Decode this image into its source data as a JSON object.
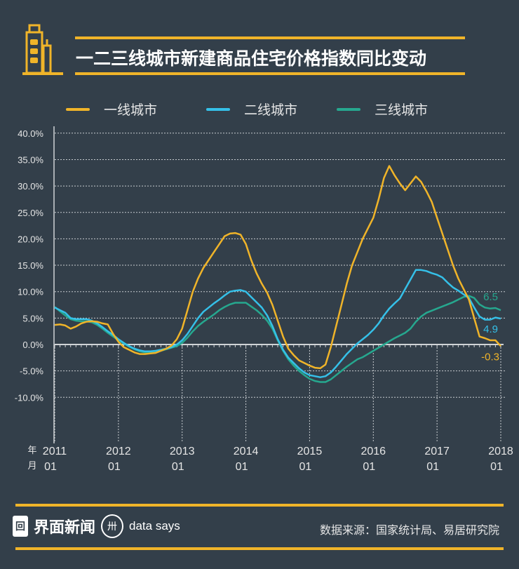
{
  "header": {
    "title": "一二三线城市新建商品住宅价格指数同比变动",
    "icon": "buildings-icon"
  },
  "footer": {
    "brand_name": "界面新闻",
    "brand_sub": "data says",
    "source": "数据来源：国家统计局、易居研究院",
    "brand_box_glyph": "回",
    "ds_glyph": "卅"
  },
  "chart_data": {
    "type": "line",
    "title": "一二三线城市新建商品住宅价格指数同比变动",
    "xlabel_year": "年",
    "xlabel_month": "月",
    "x_ticks": [
      {
        "year": "2011",
        "month": "01"
      },
      {
        "year": "2012",
        "month": "01"
      },
      {
        "year": "2013",
        "month": "01"
      },
      {
        "year": "2014",
        "month": "01"
      },
      {
        "year": "2015",
        "month": "01"
      },
      {
        "year": "2016",
        "month": "01"
      },
      {
        "year": "2017",
        "month": "01"
      },
      {
        "year": "2018",
        "month": "01"
      }
    ],
    "x_start": "2011-01",
    "x_end": "2018-01",
    "y_ticks": [
      "40.0%",
      "35.0%",
      "30.0%",
      "25.0%",
      "20.0%",
      "15.0%",
      "10.0%",
      "5.0%",
      "0.0%",
      "-5.0%",
      "-10.0%"
    ],
    "y_tick_values": [
      40,
      35,
      30,
      25,
      20,
      15,
      10,
      5,
      0,
      -5,
      -10
    ],
    "ylim": [
      -10,
      40
    ],
    "grid": true,
    "legend_position": "top",
    "series": [
      {
        "name": "一线城市",
        "color": "#f0b429",
        "end_label": "-0.3",
        "values": [
          3.7,
          3.8,
          3.6,
          3.0,
          3.4,
          4.0,
          4.3,
          4.4,
          4.3,
          4.0,
          3.8,
          2.0,
          0.5,
          -0.5,
          -1.0,
          -1.5,
          -1.8,
          -1.8,
          -1.7,
          -1.6,
          -1.2,
          -0.8,
          -0.2,
          1.0,
          3.0,
          6.5,
          10,
          12.5,
          14.5,
          16,
          17.5,
          19,
          20.5,
          21.0,
          21.1,
          20.8,
          19.0,
          16.0,
          13.5,
          11.5,
          9.8,
          7.5,
          4.5,
          1.5,
          -0.8,
          -2,
          -3,
          -3.5,
          -4,
          -4.4,
          -4.5,
          -3.8,
          -0.5,
          3.5,
          7.5,
          11.5,
          15,
          17.5,
          20,
          22,
          24,
          27.5,
          31.5,
          33.8,
          32,
          30.5,
          29.2,
          30.5,
          31.8,
          30.8,
          29,
          27,
          24,
          21,
          18,
          15,
          12.5,
          10.5,
          8.5,
          5,
          1.5,
          1.2,
          0.8,
          0.8,
          -0.3
        ]
      },
      {
        "name": "二线城市",
        "color": "#35c0e8",
        "end_label": "4.9",
        "values": [
          7.0,
          6.5,
          6.0,
          5.0,
          4.8,
          4.8,
          4.8,
          4.5,
          4.0,
          3.3,
          2.5,
          1.8,
          1.0,
          0.3,
          -0.3,
          -0.8,
          -1.1,
          -1.3,
          -1.3,
          -1.2,
          -1.0,
          -0.8,
          -0.5,
          0,
          0.8,
          2,
          3.5,
          5,
          6.2,
          7,
          7.8,
          8.5,
          9.3,
          10,
          10.2,
          10.3,
          10,
          9,
          8,
          7,
          5.5,
          3.5,
          1,
          -1,
          -2.5,
          -3.5,
          -4.5,
          -5.3,
          -5.8,
          -6.0,
          -6.2,
          -6.0,
          -5.3,
          -4.2,
          -3,
          -1.8,
          -0.8,
          0.2,
          1,
          1.8,
          2.8,
          4,
          5.5,
          6.8,
          7.8,
          8.7,
          10.5,
          12.3,
          14.1,
          14.1,
          13.9,
          13.5,
          13.2,
          12.7,
          11.7,
          10.8,
          10.2,
          9.5,
          8.8,
          7,
          5.3,
          4.7,
          4.7,
          5.1,
          4.9
        ]
      },
      {
        "name": "三线城市",
        "color": "#26a88f",
        "end_label": "6.5",
        "values": [
          7.1,
          6.3,
          5.5,
          4.8,
          4.5,
          4.4,
          4.4,
          4.2,
          3.7,
          3.0,
          2.2,
          1.5,
          0.8,
          0.2,
          -0.4,
          -0.9,
          -1.3,
          -1.5,
          -1.5,
          -1.4,
          -1.2,
          -0.9,
          -0.6,
          -0.3,
          0.3,
          1.3,
          2.5,
          3.5,
          4.3,
          5,
          5.7,
          6.5,
          7.1,
          7.6,
          7.9,
          7.9,
          7.9,
          7.2,
          6.5,
          5.6,
          4.5,
          3,
          0.8,
          -1.2,
          -2.8,
          -4,
          -5,
          -5.8,
          -6.5,
          -6.9,
          -7.1,
          -7.1,
          -6.6,
          -5.8,
          -5,
          -4.2,
          -3.5,
          -2.8,
          -2.4,
          -1.8,
          -1.2,
          -0.6,
          0,
          0.6,
          1.2,
          1.7,
          2.2,
          3,
          4.3,
          5.3,
          6,
          6.4,
          6.8,
          7.2,
          7.6,
          8,
          8.5,
          9,
          9.2,
          8.8,
          7.6,
          7,
          6.8,
          6.9,
          6.5
        ]
      }
    ]
  }
}
